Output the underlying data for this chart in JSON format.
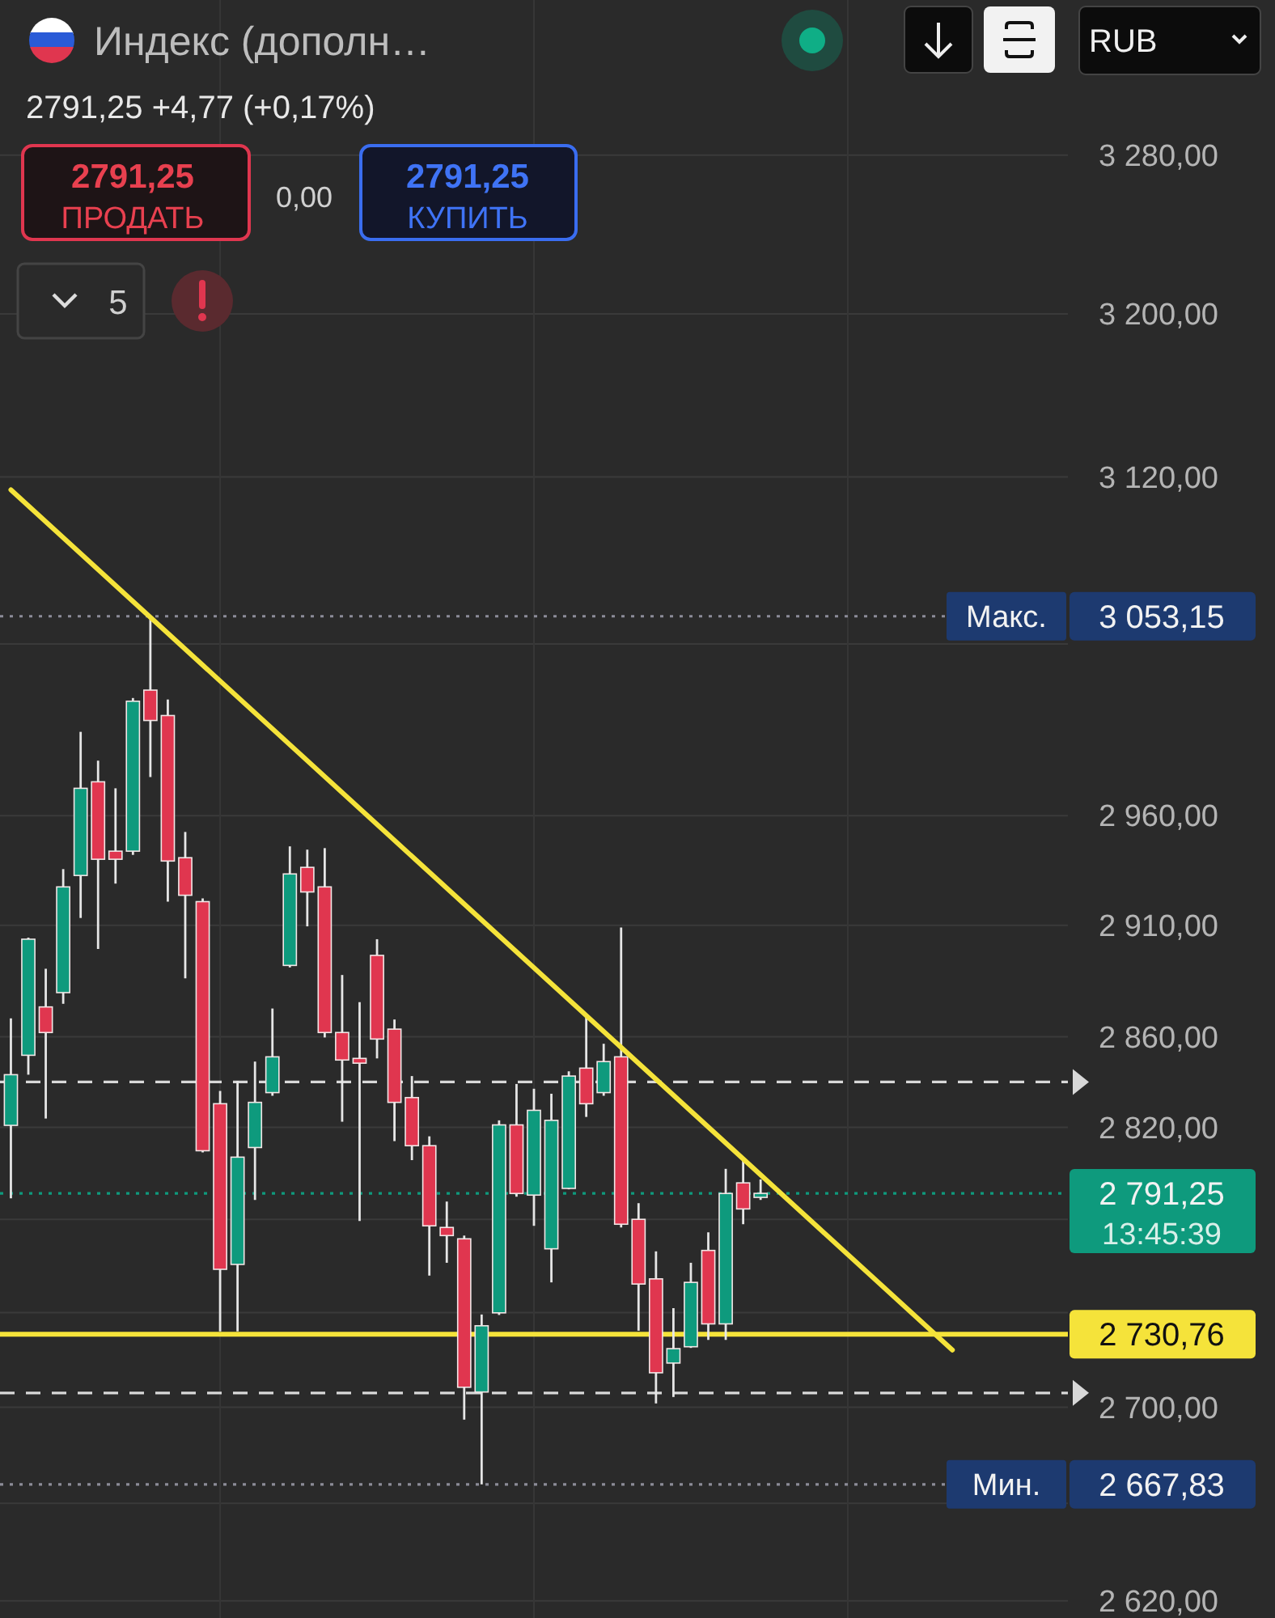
{
  "chart_data": {
    "type": "candlestick",
    "title": "Индекс (дополн…",
    "subtitle": "2791,25 +4,77 (+0,17%)",
    "categories": [
      null,
      null,
      null,
      null,
      null,
      null,
      null,
      null,
      null,
      null,
      null,
      null,
      null,
      null,
      null,
      null,
      null,
      null,
      null,
      null,
      null,
      null,
      null,
      null,
      null,
      null,
      null,
      null,
      null,
      null,
      null,
      null,
      null,
      null,
      null,
      null,
      null,
      null,
      null,
      null,
      null,
      null,
      null,
      null,
      null,
      null,
      null,
      null,
      null,
      null,
      null,
      null,
      null,
      null,
      null,
      null,
      null,
      null,
      null,
      null,
      null
    ],
    "ohlc": [
      [
        2820.9,
        2868.2,
        2789.1,
        2843.2
      ],
      [
        2851.8,
        2904.4,
        2843.2,
        2903.7
      ],
      [
        2873.3,
        2890.4,
        2823.9,
        2861.9
      ],
      [
        2879.7,
        2935.5,
        2874.7,
        2927.4
      ],
      [
        2932.6,
        2998.8,
        2913.3,
        2972.6
      ],
      [
        2975.6,
        2985.4,
        2899.3,
        2940.0
      ],
      [
        2943.7,
        2972.6,
        2928.9,
        2940.0
      ],
      [
        2943.7,
        3014.6,
        2942.0,
        3013.1
      ],
      [
        3018.3,
        3053.15,
        2977.8,
        3004.1
      ],
      [
        3006.4,
        3013.9,
        2920.7,
        2939.2
      ],
      [
        2940.7,
        2952.5,
        2886.1,
        2923.6
      ],
      [
        2920.7,
        2922.2,
        2809.1,
        2809.8
      ],
      [
        2830.4,
        2836.0,
        2732.0,
        2758.5
      ],
      [
        2760.6,
        2840.5,
        2732.0,
        2807.0
      ],
      [
        2811.2,
        2849.0,
        2788.4,
        2831.0
      ],
      [
        2835.3,
        2872.6,
        2833.9,
        2851.1
      ],
      [
        2891.9,
        2945.9,
        2891.0,
        2933.3
      ],
      [
        2936.3,
        2944.4,
        2909.5,
        2925.1
      ],
      [
        2927.4,
        2945.1,
        2859.7,
        2861.9
      ],
      [
        2861.9,
        2887.6,
        2822.5,
        2849.7
      ],
      [
        2850.4,
        2875.4,
        2779.3,
        2848.3
      ],
      [
        2896.4,
        2903.7,
        2850.4,
        2859.0
      ],
      [
        2863.4,
        2867.7,
        2814.0,
        2831.0
      ],
      [
        2833.1,
        2842.6,
        2805.7,
        2812.0
      ],
      [
        2812.0,
        2816.1,
        2755.8,
        2777.2
      ],
      [
        2776.5,
        2787.7,
        2761.3,
        2773.0
      ],
      [
        2771.6,
        2773.0,
        2694.8,
        2708.4
      ],
      [
        2706.4,
        2739.2,
        2667.83,
        2734.4
      ],
      [
        2739.9,
        2823.1,
        2739.0,
        2821.1
      ],
      [
        2821.1,
        2839.1,
        2789.8,
        2791.2
      ],
      [
        2790.5,
        2837.0,
        2777.2,
        2827.5
      ],
      [
        2767.3,
        2834.8,
        2752.9,
        2823.1
      ],
      [
        2793.4,
        2844.7,
        2793.0,
        2842.6
      ],
      [
        2846.1,
        2869.7,
        2824.6,
        2830.4
      ],
      [
        2835.3,
        2856.9,
        2833.9,
        2849.0
      ],
      [
        2851.1,
        2909.0,
        2776.5,
        2777.9
      ],
      [
        2780.0,
        2787.0,
        2732.3,
        2752.2
      ],
      [
        2754.4,
        2766.2,
        2701.6,
        2714.5
      ],
      [
        2718.6,
        2741.9,
        2704.3,
        2724.7
      ],
      [
        2725.5,
        2761.3,
        2725.0,
        2752.9
      ],
      [
        2766.6,
        2774.4,
        2728.4,
        2735.2
      ],
      [
        2735.2,
        2801.9,
        2728.4,
        2791.2
      ],
      [
        2795.8,
        2806.4,
        2777.9,
        2784.5
      ],
      [
        2789.5,
        2797.3,
        2788.4,
        2791.25
      ],
      null,
      null,
      null,
      null,
      null,
      null,
      null,
      null,
      null,
      null,
      null,
      null,
      null,
      null,
      null,
      null,
      null
    ],
    "colors": [
      "#0e9a7d",
      "#0e9a7d",
      "#e0364f",
      "#0e9a7d",
      "#0e9a7d",
      "#e0364f",
      "#e0364f",
      "#0e9a7d",
      "#e0364f",
      "#e0364f",
      "#e0364f",
      "#e0364f",
      "#e0364f",
      "#0e9a7d",
      "#0e9a7d",
      "#0e9a7d",
      "#0e9a7d",
      "#e0364f",
      "#e0364f",
      "#e0364f",
      "#e0364f",
      "#e0364f",
      "#e0364f",
      "#e0364f",
      "#e0364f",
      "#e0364f",
      "#e0364f",
      "#0e9a7d",
      "#0e9a7d",
      "#e0364f",
      "#0e9a7d",
      "#0e9a7d",
      "#0e9a7d",
      "#e0364f",
      "#0e9a7d",
      "#e0364f",
      "#e0364f",
      "#e0364f",
      "#0e9a7d",
      "#0e9a7d",
      "#e0364f",
      "#0e9a7d",
      "#e0364f",
      "#0e9a7d",
      null,
      null,
      null,
      null,
      null,
      null,
      null,
      null,
      null,
      null,
      null,
      null,
      null,
      null,
      null,
      null,
      null
    ],
    "series": [
      {
        "type": "line",
        "color": "#f5e33a",
        "values": [
          3113.7,
          null,
          null,
          null,
          null,
          null,
          null,
          null,
          null,
          null,
          null,
          null,
          null,
          null,
          null,
          null,
          null,
          null,
          null,
          null,
          null,
          null,
          null,
          null,
          null,
          null,
          null,
          null,
          null,
          null,
          null,
          null,
          null,
          null,
          null,
          null,
          null,
          null,
          null,
          null,
          null,
          null,
          null,
          null,
          null,
          null,
          null,
          null,
          null,
          null,
          null,
          null,
          null,
          null,
          2724.1,
          null,
          null,
          null,
          null,
          null,
          null
        ]
      }
    ],
    "log": true,
    "ylim": [
      2613,
      3360
    ],
    "yticks": [
      {
        "value": 2620,
        "label": "2 620,00"
      },
      {
        "value": 2660,
        "label": null
      },
      {
        "value": 2700,
        "label": "2 700,00"
      },
      {
        "value": 2740,
        "label": null
      },
      {
        "value": 2780,
        "label": null
      },
      {
        "value": 2820,
        "label": "2 820,00"
      },
      {
        "value": 2860,
        "label": "2 860,00"
      },
      {
        "value": 2910,
        "label": "2 910,00"
      },
      {
        "value": 2960,
        "label": "2 960,00"
      },
      {
        "value": 3040,
        "label": null
      },
      {
        "value": 3120,
        "label": "3 120,00"
      },
      {
        "value": 3200,
        "label": "3 200,00"
      },
      {
        "value": 3280,
        "label": "3 280,00"
      }
    ],
    "grid": true,
    "tick_labels": "y",
    "ref_lines": [
      {
        "axis": "y",
        "value": 3053.15,
        "label": "3 053,15",
        "line_style": "dotted",
        "color": "#8c8c98"
      },
      {
        "axis": "y",
        "value": 2840,
        "line_style": "dashed",
        "color": "#d8d8d8"
      },
      {
        "axis": "y",
        "value": 2791.25,
        "label": "2 791,25",
        "line_style": "dotted",
        "color": "#0e9a7d"
      },
      {
        "axis": "y",
        "value": 2730.76,
        "label": "2 730,76",
        "line_style": "solid",
        "color": "#f5e33a"
      },
      {
        "axis": "y",
        "value": 2706,
        "line_style": "dashed",
        "color": "#d8d8d8"
      },
      {
        "axis": "y",
        "value": 2667.83,
        "label": "2 667,83",
        "line_style": "dotted",
        "color": "#8c8c98"
      }
    ],
    "annotations": [
      {
        "text": "Макс.",
        "y": 3053.15
      },
      {
        "text": "Мин.",
        "y": 2667.83
      },
      "13:45:39",
      "2791,25",
      "ПРОДАТЬ",
      "0,00",
      "2791,25",
      "КУПИТЬ",
      "5",
      "RUB"
    ]
  }
}
